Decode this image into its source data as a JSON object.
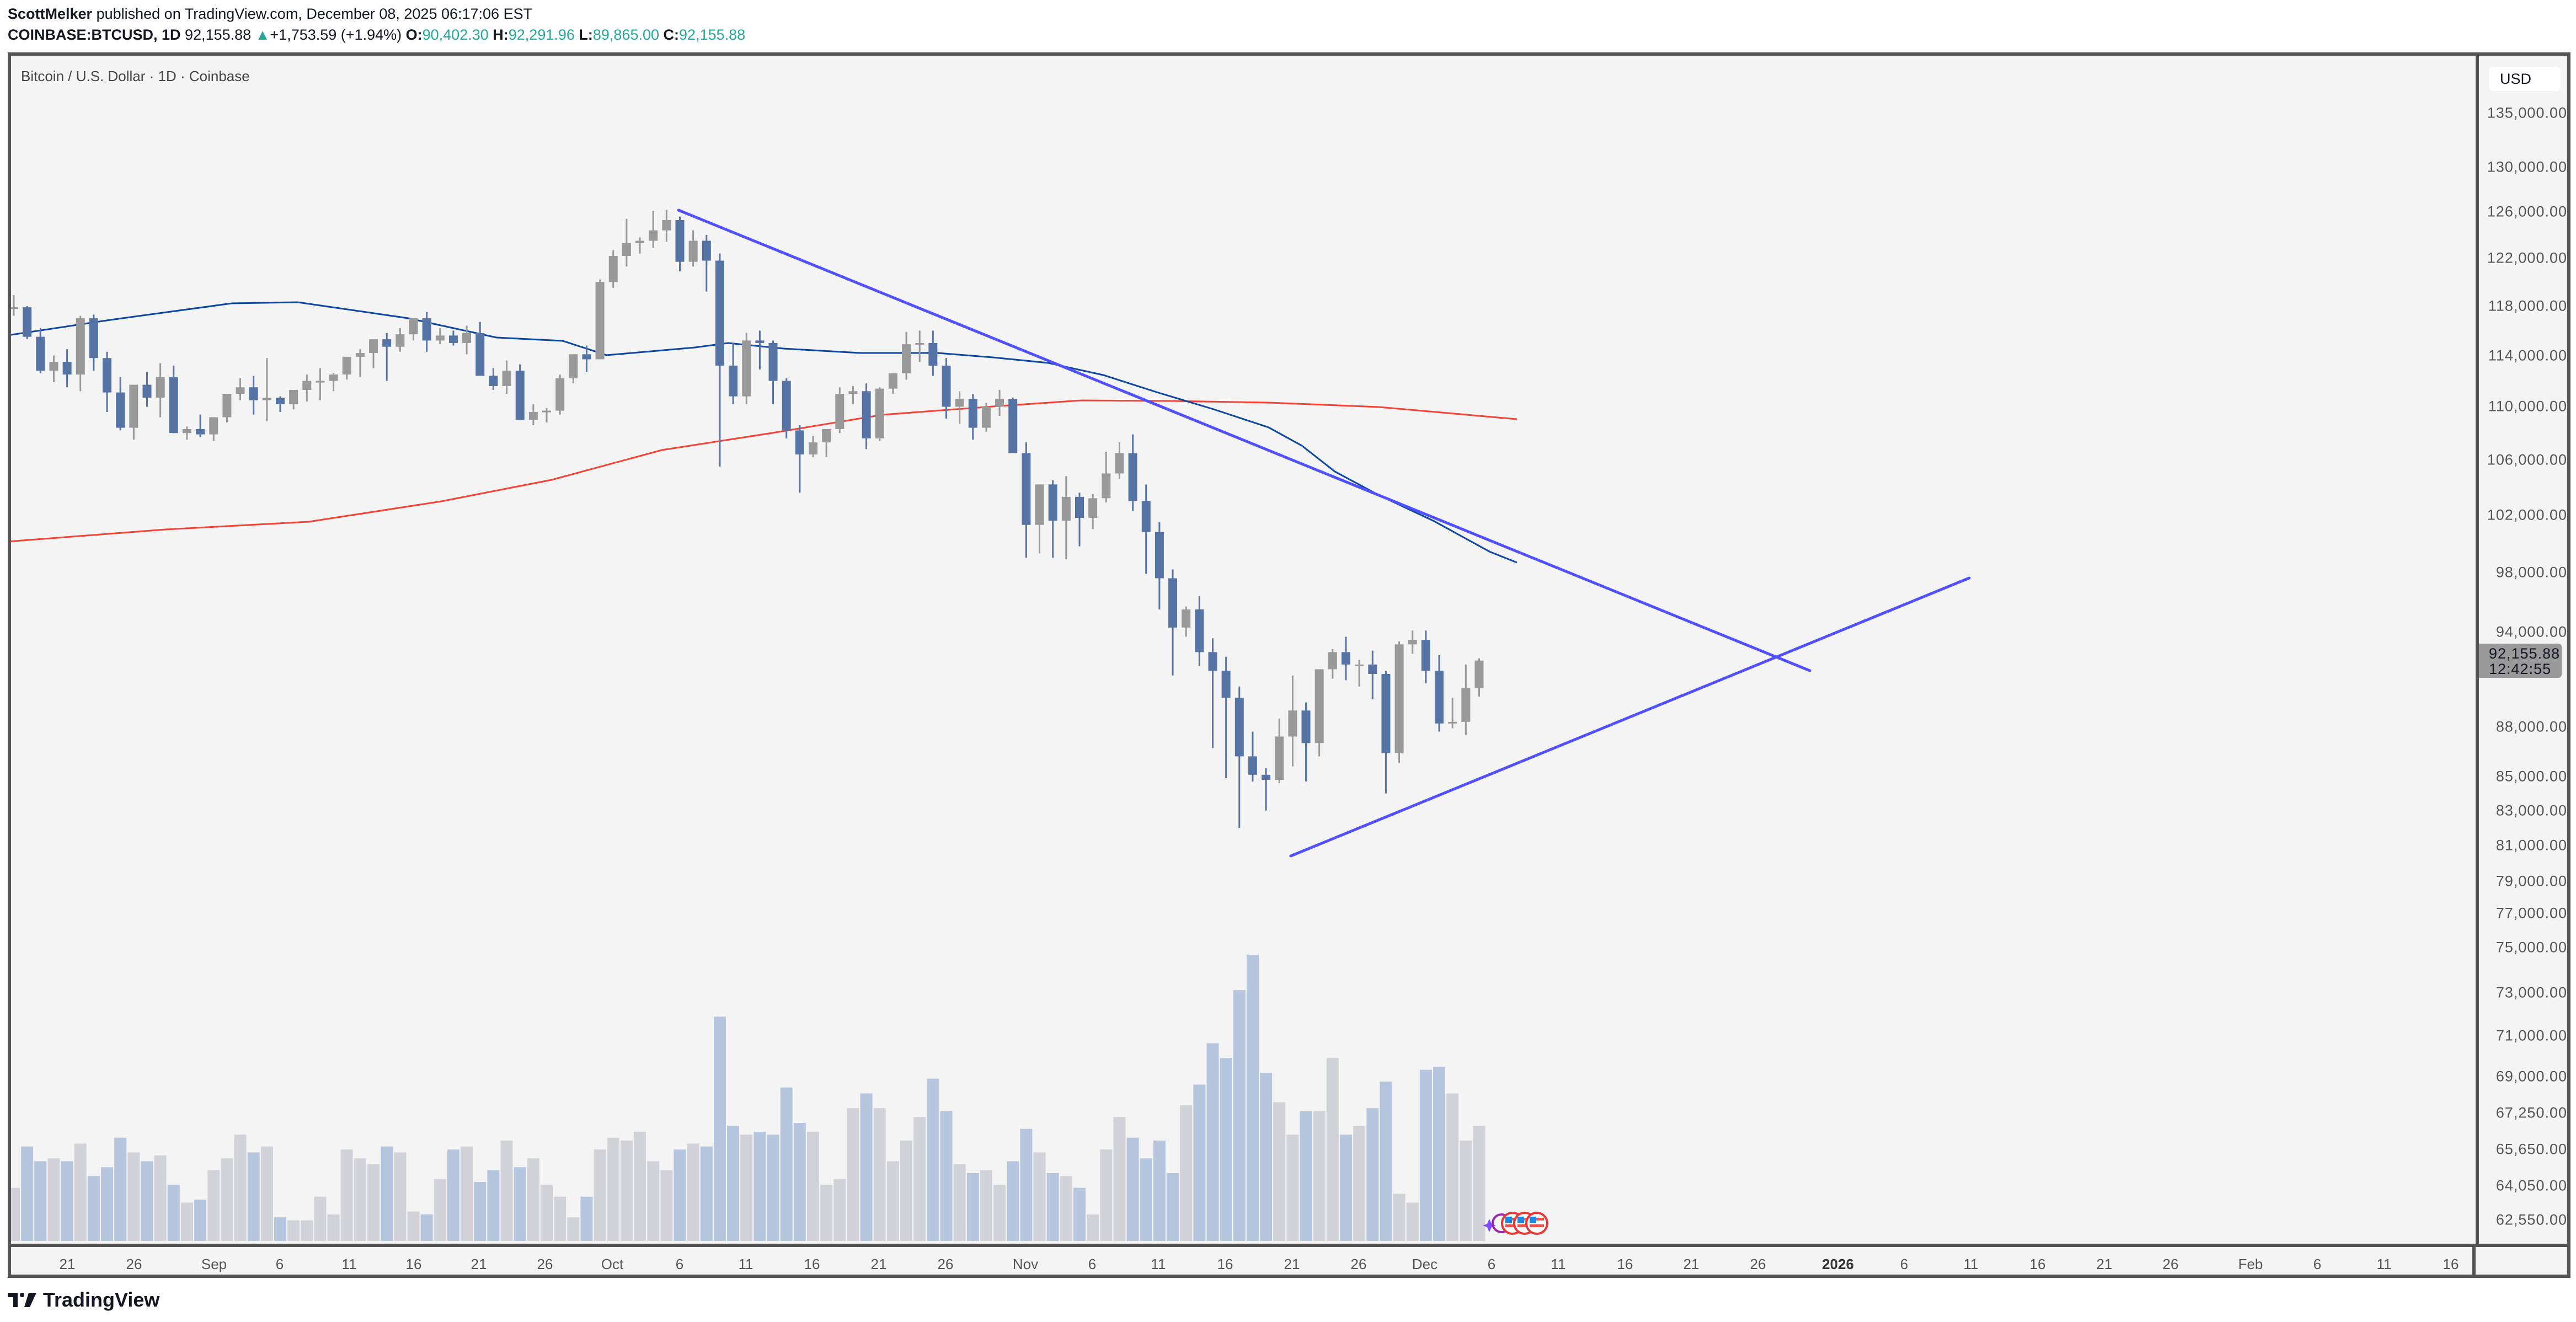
{
  "header": {
    "publisher": "ScottMelker",
    "published_text": "published on TradingView.com, December 08, 2025 06:17:06 EST",
    "symbol": "COINBASE:BTCUSD, 1D",
    "last": "92,155.88",
    "change": "+1,753.59 (+1.94%)",
    "o_label": "O:",
    "o": "90,402.30",
    "h_label": "H:",
    "h": "92,291.96",
    "l_label": "L:",
    "l": "89,865.00",
    "c_label": "C:",
    "c": "92,155.88",
    "up_arrow": "▲"
  },
  "chart": {
    "title": "Bitcoin / U.S. Dollar · 1D · Coinbase",
    "currency": "USD",
    "last_price_label": "92,155.88",
    "countdown": "12:42:55",
    "price_axis": [
      {
        "v": 135000,
        "t": "135,000.00"
      },
      {
        "v": 130000,
        "t": "130,000.00"
      },
      {
        "v": 126000,
        "t": "126,000.00"
      },
      {
        "v": 122000,
        "t": "122,000.00"
      },
      {
        "v": 118000,
        "t": "118,000.00"
      },
      {
        "v": 114000,
        "t": "114,000.00"
      },
      {
        "v": 110000,
        "t": "110,000.00"
      },
      {
        "v": 106000,
        "t": "106,000.00"
      },
      {
        "v": 102000,
        "t": "102,000.00"
      },
      {
        "v": 98000,
        "t": "98,000.00"
      },
      {
        "v": 94000,
        "t": "94,000.00"
      },
      {
        "v": 88000,
        "t": "88,000.00"
      },
      {
        "v": 85000,
        "t": "85,000.00"
      },
      {
        "v": 83000,
        "t": "83,000.00"
      },
      {
        "v": 81000,
        "t": "81,000.00"
      },
      {
        "v": 79000,
        "t": "79,000.00"
      }
    ],
    "volume_axis": [
      {
        "y": 1656,
        "t": "77,000.00"
      },
      {
        "y": 1718,
        "t": "75,000.00"
      },
      {
        "y": 1800,
        "t": "73,000.00"
      },
      {
        "y": 1878,
        "t": "71,000.00"
      },
      {
        "y": 1952,
        "t": "69,000.00"
      },
      {
        "y": 2018,
        "t": "67,250.00"
      },
      {
        "y": 2084,
        "t": "65,650.00"
      },
      {
        "y": 2150,
        "t": "64,050.00"
      },
      {
        "y": 2212,
        "t": "62,550.00"
      }
    ],
    "time_axis": [
      {
        "x": 122,
        "t": "21"
      },
      {
        "x": 243,
        "t": "26"
      },
      {
        "x": 388,
        "t": "Sep"
      },
      {
        "x": 507,
        "t": "6"
      },
      {
        "x": 633,
        "t": "11"
      },
      {
        "x": 750,
        "t": "16"
      },
      {
        "x": 868,
        "t": "21"
      },
      {
        "x": 988,
        "t": "26"
      },
      {
        "x": 1110,
        "t": "Oct"
      },
      {
        "x": 1232,
        "t": "6"
      },
      {
        "x": 1352,
        "t": "11"
      },
      {
        "x": 1472,
        "t": "16"
      },
      {
        "x": 1593,
        "t": "21"
      },
      {
        "x": 1714,
        "t": "26"
      },
      {
        "x": 1859,
        "t": "Nov"
      },
      {
        "x": 1980,
        "t": "6"
      },
      {
        "x": 2100,
        "t": "11"
      },
      {
        "x": 2221,
        "t": "16"
      },
      {
        "x": 2342,
        "t": "21"
      },
      {
        "x": 2463,
        "t": "26"
      },
      {
        "x": 2583,
        "t": "Dec"
      },
      {
        "x": 2704,
        "t": "6"
      },
      {
        "x": 2825,
        "t": "11"
      },
      {
        "x": 2946,
        "t": "16"
      },
      {
        "x": 3066,
        "t": "21"
      },
      {
        "x": 3187,
        "t": "26"
      },
      {
        "x": 3332,
        "t": "2026",
        "bold": true
      },
      {
        "x": 3452,
        "t": "6"
      },
      {
        "x": 3573,
        "t": "11"
      },
      {
        "x": 3694,
        "t": "16"
      },
      {
        "x": 3815,
        "t": "21"
      },
      {
        "x": 3935,
        "t": "26"
      },
      {
        "x": 4080,
        "t": "Feb"
      },
      {
        "x": 4201,
        "t": "6"
      },
      {
        "x": 4322,
        "t": "11"
      },
      {
        "x": 4443,
        "t": "16"
      }
    ]
  },
  "chart_data": {
    "type": "candlestick",
    "title": "Bitcoin / U.S. Dollar · 1D · Coinbase",
    "scale": "log",
    "xlabel": "",
    "ylabel": "USD",
    "first_date": "2025-08-17",
    "last_date": "2025-12-08",
    "colors": {
      "up": "#999999",
      "down": "#5673a6",
      "vol_up": "#d1d3d8",
      "vol_down": "#b7c6df",
      "ma50": "#0d47a1",
      "ma200": "#f44336",
      "trendline": "#5050ff"
    },
    "candles": [
      [
        117800,
        118900,
        117200,
        117900
      ],
      [
        117900,
        118000,
        115300,
        115500
      ],
      [
        115500,
        116200,
        112600,
        112800
      ],
      [
        112800,
        114000,
        111900,
        113500
      ],
      [
        113500,
        114500,
        111500,
        112500
      ],
      [
        112500,
        117200,
        111200,
        117000
      ],
      [
        117000,
        117300,
        112800,
        113800
      ],
      [
        113800,
        114300,
        109600,
        111100
      ],
      [
        111100,
        112300,
        108200,
        108400
      ],
      [
        108400,
        111700,
        107500,
        111700
      ],
      [
        111700,
        112700,
        110000,
        110700
      ],
      [
        110700,
        113400,
        109200,
        112300
      ],
      [
        112300,
        113200,
        108000,
        108000
      ],
      [
        108000,
        108500,
        107500,
        108300
      ],
      [
        108300,
        109400,
        107700,
        107900
      ],
      [
        107900,
        109200,
        107400,
        109200
      ],
      [
        109200,
        111000,
        108800,
        111000
      ],
      [
        111000,
        112200,
        110500,
        111500
      ],
      [
        111500,
        112400,
        109400,
        110500
      ],
      [
        110500,
        113800,
        108900,
        110700
      ],
      [
        110700,
        110800,
        109600,
        110200
      ],
      [
        110200,
        111000,
        109800,
        111300
      ],
      [
        111300,
        112500,
        110400,
        112000
      ],
      [
        112000,
        113000,
        110500,
        112000
      ],
      [
        112000,
        112600,
        111200,
        112500
      ],
      [
        112500,
        113400,
        112100,
        113900
      ],
      [
        113900,
        114500,
        112300,
        114200
      ],
      [
        114200,
        115200,
        113000,
        115300
      ],
      [
        115300,
        115800,
        112000,
        114700
      ],
      [
        114700,
        116200,
        114300,
        115700
      ],
      [
        115700,
        117000,
        115200,
        117000
      ],
      [
        117000,
        117500,
        114300,
        115200
      ],
      [
        115200,
        116200,
        114900,
        115600
      ],
      [
        115600,
        116000,
        114800,
        115000
      ],
      [
        115000,
        116400,
        114100,
        115800
      ],
      [
        115800,
        116700,
        114200,
        112400
      ],
      [
        112400,
        113000,
        111300,
        111600
      ],
      [
        111600,
        113600,
        111000,
        112800
      ],
      [
        112800,
        113300,
        109000,
        109000
      ],
      [
        109000,
        110200,
        108600,
        109600
      ],
      [
        109600,
        109900,
        108800,
        109700
      ],
      [
        109700,
        112500,
        109400,
        112200
      ],
      [
        112200,
        114100,
        111800,
        114100
      ],
      [
        114100,
        114800,
        112700,
        113700
      ],
      [
        113700,
        120200,
        113700,
        120000
      ],
      [
        120000,
        122700,
        119500,
        122200
      ],
      [
        122200,
        125400,
        121300,
        123300
      ],
      [
        123300,
        123800,
        122400,
        123500
      ],
      [
        123500,
        126100,
        122900,
        124400
      ],
      [
        124400,
        126200,
        123400,
        125300
      ],
      [
        125300,
        125600,
        120900,
        121700
      ],
      [
        121700,
        124400,
        121300,
        123500
      ],
      [
        123500,
        124000,
        119200,
        121800
      ],
      [
        121800,
        122400,
        105500,
        113200
      ],
      [
        113200,
        115000,
        110200,
        110800
      ],
      [
        110800,
        115800,
        110200,
        115200
      ],
      [
        115200,
        116000,
        112900,
        115000
      ],
      [
        115000,
        115200,
        110200,
        112000
      ],
      [
        112000,
        112200,
        107600,
        108200
      ],
      [
        108200,
        108600,
        103600,
        106400
      ],
      [
        106400,
        107800,
        106200,
        107300
      ],
      [
        107300,
        108300,
        106200,
        108300
      ],
      [
        108300,
        111500,
        108000,
        111000
      ],
      [
        111000,
        111600,
        110200,
        111200
      ],
      [
        111200,
        111800,
        106800,
        107600
      ],
      [
        107600,
        111500,
        107400,
        111400
      ],
      [
        111400,
        112400,
        111000,
        112600
      ],
      [
        112600,
        115900,
        112100,
        114900
      ],
      [
        114900,
        116000,
        113500,
        115000
      ],
      [
        115000,
        116000,
        112400,
        113200
      ],
      [
        113200,
        113800,
        109100,
        110000
      ],
      [
        110000,
        111200,
        108700,
        110600
      ],
      [
        110600,
        111000,
        107500,
        108400
      ],
      [
        108400,
        110300,
        108100,
        110000
      ],
      [
        110000,
        111300,
        109300,
        110600
      ],
      [
        110600,
        110700,
        107300,
        106500
      ],
      [
        106500,
        107300,
        99000,
        101300
      ],
      [
        101300,
        103500,
        99300,
        104200
      ],
      [
        104200,
        104500,
        99000,
        101600
      ],
      [
        101600,
        104800,
        98900,
        103300
      ],
      [
        103300,
        103600,
        99800,
        101800
      ],
      [
        101800,
        103500,
        101000,
        103200
      ],
      [
        103200,
        106600,
        102900,
        105000
      ],
      [
        105000,
        107300,
        104600,
        106500
      ],
      [
        106500,
        107900,
        102300,
        103000
      ],
      [
        103000,
        104200,
        97900,
        100800
      ],
      [
        100800,
        101500,
        95500,
        97600
      ],
      [
        97600,
        98200,
        91200,
        94300
      ],
      [
        94300,
        95700,
        93700,
        95500
      ],
      [
        95500,
        96400,
        91800,
        92700
      ],
      [
        92700,
        93600,
        86700,
        91500
      ],
      [
        91500,
        92400,
        84900,
        89800
      ],
      [
        89800,
        90500,
        82000,
        86200
      ],
      [
        86200,
        87700,
        84700,
        85100
      ],
      [
        85100,
        85500,
        83000,
        84800
      ],
      [
        84800,
        88500,
        84600,
        87400
      ],
      [
        87400,
        91200,
        85600,
        89000
      ],
      [
        89000,
        89500,
        84700,
        87000
      ],
      [
        87000,
        91500,
        86200,
        91600
      ],
      [
        91600,
        92900,
        91000,
        92700
      ],
      [
        92700,
        93700,
        90900,
        91900
      ],
      [
        91900,
        92200,
        90500,
        91900
      ],
      [
        91900,
        92800,
        89700,
        91300
      ],
      [
        91300,
        91500,
        84000,
        86400
      ],
      [
        86400,
        93400,
        85800,
        93200
      ],
      [
        93200,
        94100,
        92600,
        93500
      ],
      [
        93500,
        94100,
        90700,
        91500
      ],
      [
        91500,
        92500,
        87700,
        88200
      ],
      [
        88200,
        89800,
        87900,
        88300
      ],
      [
        88300,
        91900,
        87500,
        90400
      ],
      [
        90400,
        92300,
        89865,
        92156
      ]
    ],
    "volume_rel": [
      0.18,
      0.32,
      0.27,
      0.28,
      0.27,
      0.33,
      0.22,
      0.25,
      0.35,
      0.3,
      0.27,
      0.29,
      0.19,
      0.13,
      0.14,
      0.24,
      0.28,
      0.36,
      0.3,
      0.32,
      0.08,
      0.07,
      0.07,
      0.15,
      0.09,
      0.31,
      0.28,
      0.26,
      0.32,
      0.3,
      0.1,
      0.09,
      0.21,
      0.31,
      0.32,
      0.2,
      0.24,
      0.34,
      0.25,
      0.28,
      0.19,
      0.15,
      0.08,
      0.15,
      0.31,
      0.35,
      0.34,
      0.37,
      0.27,
      0.24,
      0.31,
      0.33,
      0.32,
      0.76,
      0.39,
      0.36,
      0.37,
      0.36,
      0.52,
      0.4,
      0.37,
      0.19,
      0.21,
      0.45,
      0.5,
      0.45,
      0.27,
      0.34,
      0.42,
      0.55,
      0.44,
      0.26,
      0.23,
      0.24,
      0.19,
      0.27,
      0.38,
      0.3,
      0.23,
      0.22,
      0.18,
      0.09,
      0.31,
      0.42,
      0.35,
      0.28,
      0.34,
      0.23,
      0.46,
      0.53,
      0.67,
      0.62,
      0.85,
      0.97,
      0.57,
      0.47,
      0.36,
      0.44,
      0.44,
      0.62,
      0.36,
      0.39,
      0.45,
      0.54,
      0.16,
      0.13,
      0.58,
      0.59,
      0.5,
      0.34,
      0.39,
      0.24,
      0.14,
      0.12
    ],
    "ma50": [
      [
        14,
        608
      ],
      [
        200,
        580
      ],
      [
        420,
        550
      ],
      [
        540,
        548
      ],
      [
        740,
        577
      ],
      [
        900,
        612
      ],
      [
        1020,
        618
      ],
      [
        1100,
        644
      ],
      [
        1260,
        630
      ],
      [
        1320,
        622
      ],
      [
        1420,
        632
      ],
      [
        1560,
        640
      ],
      [
        1700,
        640
      ],
      [
        1800,
        648
      ],
      [
        1900,
        658
      ],
      [
        2000,
        680
      ],
      [
        2100,
        712
      ],
      [
        2200,
        742
      ],
      [
        2300,
        775
      ],
      [
        2360,
        808
      ],
      [
        2420,
        855
      ],
      [
        2500,
        898
      ],
      [
        2600,
        945
      ],
      [
        2700,
        1000
      ],
      [
        2750,
        1020
      ]
    ],
    "ma200": [
      [
        14,
        982
      ],
      [
        300,
        960
      ],
      [
        560,
        946
      ],
      [
        800,
        909
      ],
      [
        1000,
        870
      ],
      [
        1200,
        816
      ],
      [
        1400,
        785
      ],
      [
        1600,
        752
      ],
      [
        1800,
        737
      ],
      [
        1960,
        726
      ],
      [
        2120,
        727
      ],
      [
        2300,
        730
      ],
      [
        2500,
        738
      ],
      [
        2750,
        760
      ]
    ],
    "trendlines": [
      {
        "name": "descending resistance",
        "x1": 1230,
        "y1": 381,
        "x2": 3281,
        "y2": 1216
      },
      {
        "name": "ascending support",
        "x1": 2340,
        "y1": 1552,
        "x2": 3570,
        "y2": 1048
      }
    ],
    "ylim": [
      77000,
      138000
    ],
    "last_price": 92155.88
  },
  "footer": {
    "brand": "TradingView"
  }
}
